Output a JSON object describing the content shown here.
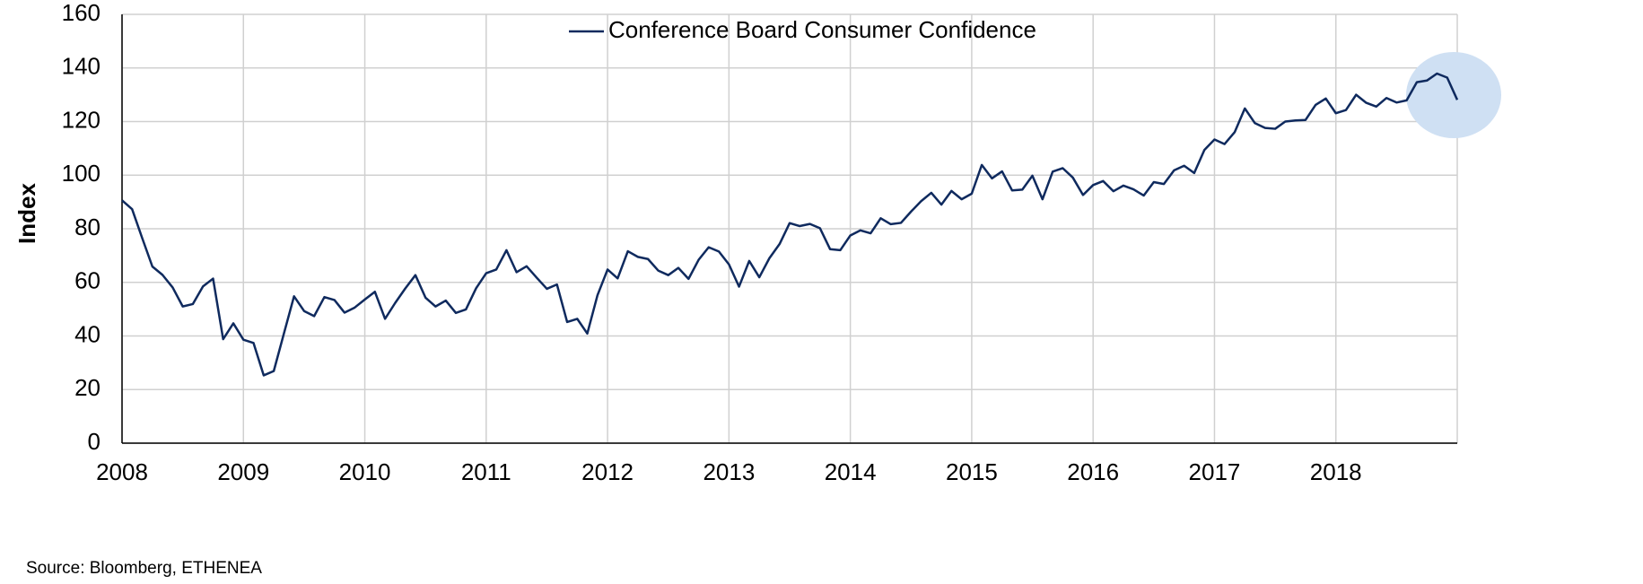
{
  "chart_data": {
    "type": "line",
    "y_label": "Index",
    "source": "Source: Bloomberg, ETHENEA",
    "xlim": [
      2008,
      2019
    ],
    "xticks": [
      2008,
      2009,
      2010,
      2011,
      2012,
      2013,
      2014,
      2015,
      2016,
      2017,
      2018
    ],
    "ylim": [
      0,
      160
    ],
    "yticks": [
      0,
      20,
      40,
      60,
      80,
      100,
      120,
      140,
      160
    ],
    "grid": true,
    "legend": "top",
    "x": [
      2008,
      2008.083,
      2008.167,
      2008.25,
      2008.333,
      2008.417,
      2008.5,
      2008.583,
      2008.667,
      2008.75,
      2008.833,
      2008.917,
      2009,
      2009.083,
      2009.167,
      2009.25,
      2009.333,
      2009.417,
      2009.5,
      2009.583,
      2009.667,
      2009.75,
      2009.833,
      2009.917,
      2010,
      2010.083,
      2010.167,
      2010.25,
      2010.333,
      2010.417,
      2010.5,
      2010.583,
      2010.667,
      2010.75,
      2010.833,
      2010.917,
      2011,
      2011.083,
      2011.167,
      2011.25,
      2011.333,
      2011.417,
      2011.5,
      2011.583,
      2011.667,
      2011.75,
      2011.833,
      2011.917,
      2012,
      2012.083,
      2012.167,
      2012.25,
      2012.333,
      2012.417,
      2012.5,
      2012.583,
      2012.667,
      2012.75,
      2012.833,
      2012.917,
      2013,
      2013.083,
      2013.167,
      2013.25,
      2013.333,
      2013.417,
      2013.5,
      2013.583,
      2013.667,
      2013.75,
      2013.833,
      2013.917,
      2014,
      2014.083,
      2014.167,
      2014.25,
      2014.333,
      2014.417,
      2014.5,
      2014.583,
      2014.667,
      2014.75,
      2014.833,
      2014.917,
      2015,
      2015.083,
      2015.167,
      2015.25,
      2015.333,
      2015.417,
      2015.5,
      2015.583,
      2015.667,
      2015.75,
      2015.833,
      2015.917,
      2016,
      2016.083,
      2016.167,
      2016.25,
      2016.333,
      2016.417,
      2016.5,
      2016.583,
      2016.667,
      2016.75,
      2016.833,
      2016.917,
      2017,
      2017.083,
      2017.167,
      2017.25,
      2017.333,
      2017.417,
      2017.5,
      2017.583,
      2017.667,
      2017.75,
      2017.833,
      2017.917,
      2018,
      2018.083,
      2018.167,
      2018.25,
      2018.333,
      2018.417,
      2018.5,
      2018.583,
      2018.667,
      2018.75,
      2018.833,
      2018.917,
      2019
    ],
    "series": [
      {
        "name": "Conference Board Consumer Confidence",
        "color": "#0f2a5e",
        "values": [
          90.6,
          87.3,
          76.4,
          65.9,
          62.8,
          58.1,
          51.0,
          51.9,
          58.5,
          61.4,
          38.8,
          44.7,
          38.6,
          37.4,
          25.3,
          26.9,
          40.8,
          54.8,
          49.3,
          47.4,
          54.5,
          53.4,
          48.7,
          50.6,
          53.6,
          56.5,
          46.4,
          52.3,
          57.7,
          62.7,
          54.3,
          51.0,
          53.2,
          48.6,
          49.9,
          57.8,
          63.4,
          64.8,
          72.0,
          63.8,
          66.0,
          61.7,
          57.6,
          59.2,
          45.2,
          46.4,
          40.9,
          55.2,
          64.8,
          61.5,
          71.6,
          69.5,
          68.7,
          64.4,
          62.7,
          65.4,
          61.3,
          68.4,
          73.1,
          71.5,
          66.7,
          58.4,
          68.0,
          61.9,
          69.0,
          74.3,
          82.1,
          81.0,
          81.8,
          80.2,
          72.4,
          72.0,
          77.5,
          79.4,
          78.3,
          83.9,
          81.7,
          82.2,
          86.4,
          90.3,
          93.4,
          89.0,
          94.1,
          91.0,
          93.1,
          103.8,
          98.8,
          101.4,
          94.3,
          94.6,
          99.8,
          91.0,
          101.3,
          102.6,
          99.1,
          92.6,
          96.3,
          97.8,
          94.0,
          96.1,
          94.7,
          92.4,
          97.4,
          96.7,
          101.8,
          103.5,
          100.8,
          109.4,
          113.3,
          111.6,
          116.1,
          124.9,
          119.4,
          117.6,
          117.3,
          120.0,
          120.4,
          120.6,
          126.2,
          128.6,
          123.1,
          124.3,
          130.0,
          127.0,
          125.6,
          128.8,
          127.1,
          127.9,
          134.7,
          135.3,
          137.9,
          136.4,
          128.1
        ]
      }
    ]
  }
}
